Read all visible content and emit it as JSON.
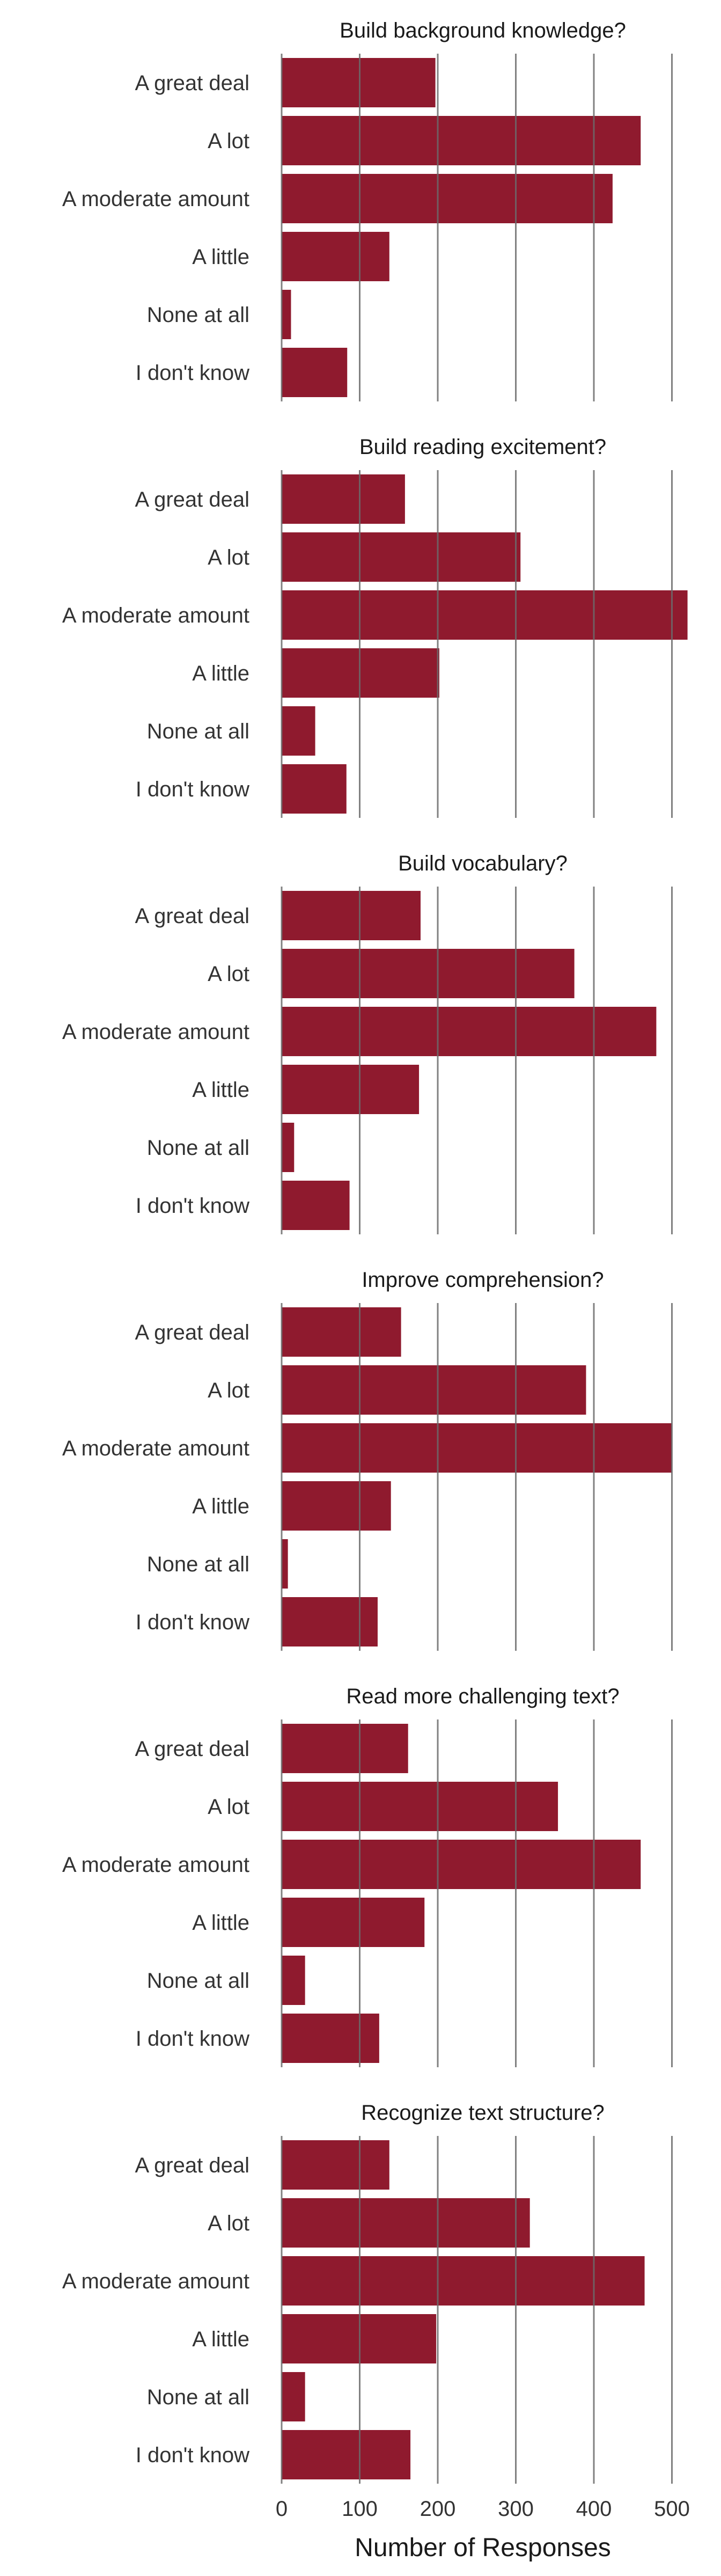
{
  "chart_data": {
    "type": "bar",
    "orientation": "horizontal",
    "bar_color": "#8f1a2e",
    "grid_color": "#6b6b6b",
    "grid": true,
    "xlabel": "Number of Responses",
    "xlim": [
      0,
      520
    ],
    "x_ticks": [
      0,
      100,
      200,
      300,
      400,
      500
    ],
    "categories": [
      "A great deal",
      "A lot",
      "A moderate amount",
      "A little",
      "None at all",
      "I don't know"
    ],
    "panels": [
      {
        "title": "Build background knowledge?",
        "values": [
          197,
          460,
          424,
          138,
          12,
          84
        ]
      },
      {
        "title": "Build reading excitement?",
        "values": [
          158,
          306,
          520,
          202,
          43,
          83
        ]
      },
      {
        "title": "Build vocabulary?",
        "values": [
          178,
          375,
          480,
          176,
          16,
          87
        ]
      },
      {
        "title": "Improve comprehension?",
        "values": [
          153,
          390,
          500,
          140,
          8,
          123
        ]
      },
      {
        "title": "Read more challenging text?",
        "values": [
          162,
          354,
          460,
          183,
          30,
          125
        ]
      },
      {
        "title": "Recognize text structure?",
        "values": [
          138,
          318,
          465,
          198,
          30,
          165
        ]
      }
    ]
  }
}
